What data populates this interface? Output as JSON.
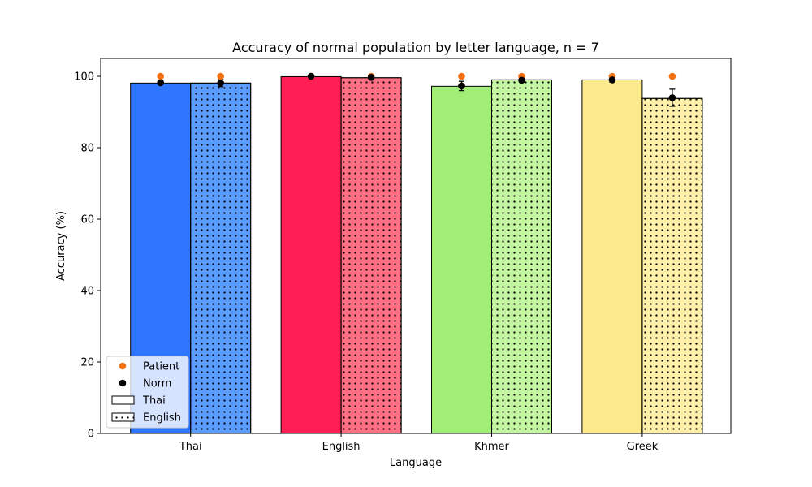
{
  "chart_data": {
    "type": "bar",
    "title": "Accuracy of normal population by letter language, n = 7",
    "xlabel": "Language",
    "ylabel": "Accuracy (%)",
    "categories": [
      "Thai",
      "English",
      "Khmer",
      "Greek"
    ],
    "ylim": [
      0,
      105
    ],
    "yticks": [
      0,
      20,
      40,
      60,
      80,
      100
    ],
    "grid": false,
    "legend_position": "lower-left",
    "series": [
      {
        "name": "Thai",
        "hatch": "none",
        "values": [
          98.1,
          99.9,
          97.2,
          99.0
        ],
        "colors": [
          "#2e75ff",
          "#ff1f55",
          "#a1ee77",
          "#fdea8c"
        ]
      },
      {
        "name": "English",
        "hatch": "dots",
        "values": [
          98.1,
          99.6,
          99.0,
          93.8
        ],
        "colors": [
          "#5b9cff",
          "#ff7085",
          "#c4f5a0",
          "#fef0a8"
        ]
      }
    ],
    "norm": {
      "name": "Norm",
      "color": "#000000",
      "values": [
        [
          98.2,
          98.1
        ],
        [
          100.0,
          99.7
        ],
        [
          97.3,
          98.9
        ],
        [
          99.0,
          94.0
        ]
      ],
      "errors": [
        [
          0.5,
          1.0
        ],
        [
          0.0,
          0.3
        ],
        [
          1.3,
          0.5
        ],
        [
          0.6,
          2.4
        ]
      ]
    },
    "patient": {
      "name": "Patient",
      "color": "#f57010",
      "values": [
        [
          100,
          100
        ],
        [
          100,
          100
        ],
        [
          100,
          100
        ],
        [
          100,
          100
        ]
      ]
    }
  }
}
